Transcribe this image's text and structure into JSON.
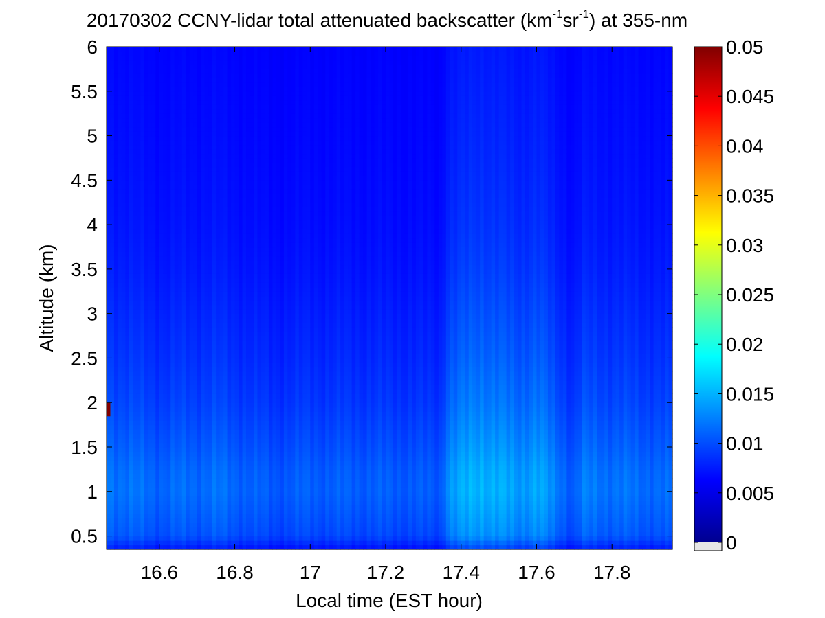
{
  "chart_data": {
    "type": "heatmap",
    "title": {
      "prefix": "20170302 CCNY-lidar total attenuated backscatter (km",
      "sup1": "-1",
      "mid": "sr",
      "sup2": "-1",
      "suffix": ") at 355-nm"
    },
    "xlabel": "Local time (EST hour)",
    "ylabel": "Altitude (km)",
    "xlim": [
      16.46,
      17.96
    ],
    "ylim": [
      0.35,
      6.0
    ],
    "x_ticks": [
      "16.6",
      "16.8",
      "17",
      "17.2",
      "17.4",
      "17.6",
      "17.8"
    ],
    "y_ticks": [
      "0.5",
      "1",
      "1.5",
      "2",
      "2.5",
      "3",
      "3.5",
      "4",
      "4.5",
      "5",
      "5.5",
      "6"
    ],
    "colorbar": {
      "colormap": "jet",
      "clim": [
        0,
        0.05
      ],
      "ticks": [
        "0",
        "0.005",
        "0.01",
        "0.015",
        "0.02",
        "0.025",
        "0.03",
        "0.035",
        "0.04",
        "0.045",
        "0.05"
      ],
      "below_min_color": "#e6e6e6"
    },
    "backscatter_profile": {
      "altitude_km": [
        0.35,
        0.5,
        0.75,
        1.0,
        1.25,
        1.5,
        1.75,
        2.0,
        2.5,
        3.0,
        3.5,
        4.0,
        5.0,
        6.0
      ],
      "value": [
        0.0075,
        0.0105,
        0.0112,
        0.0118,
        0.0115,
        0.0108,
        0.0102,
        0.0096,
        0.0088,
        0.0082,
        0.0076,
        0.0072,
        0.0068,
        0.0065
      ]
    },
    "time_modulation": {
      "time_hour": [
        16.46,
        16.6,
        16.75,
        16.9,
        17.0,
        17.2,
        17.35,
        17.36,
        17.45,
        17.55,
        17.6,
        17.7,
        17.72,
        17.85,
        17.96
      ],
      "factor": [
        1.05,
        0.96,
        1.0,
        0.9,
        0.93,
        0.92,
        0.9,
        1.15,
        1.32,
        1.18,
        1.25,
        0.9,
        1.05,
        1.0,
        0.96
      ]
    },
    "cloud_feature": {
      "time_hour": [
        16.46,
        16.47
      ],
      "altitude_km": [
        1.85,
        2.0
      ],
      "value": 0.05
    }
  }
}
